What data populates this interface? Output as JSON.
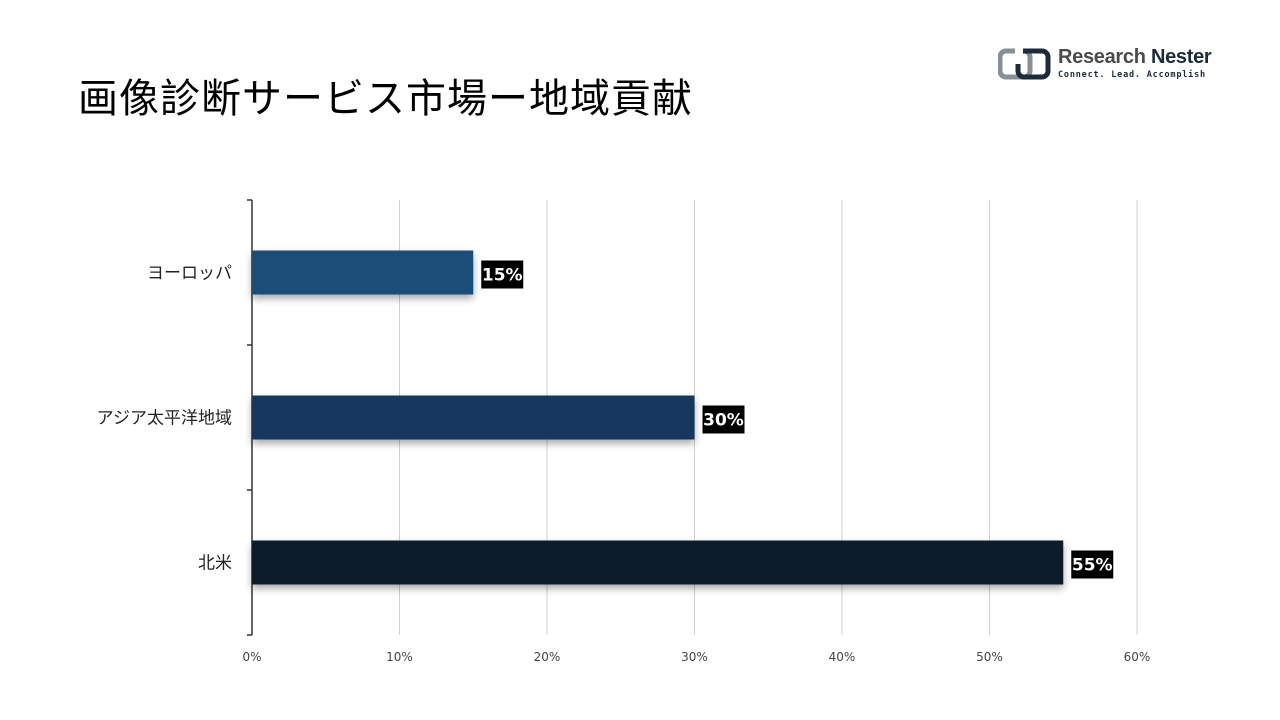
{
  "header": {
    "title": "画像診断サービス市場ー地域貢献"
  },
  "logo": {
    "name_part1": "Research",
    "name_part2": "Nester",
    "tagline": "Connect. Lead. Accomplish",
    "colors": {
      "mark": "#8a8f96",
      "dark": "#1c2a3a"
    }
  },
  "chart_data": {
    "type": "bar",
    "orientation": "horizontal",
    "categories": [
      "ヨーロッパ",
      "アジア太平洋地域",
      "北米"
    ],
    "values": [
      15,
      30,
      55
    ],
    "data_labels": [
      "15%",
      "30%",
      "55%"
    ],
    "bar_colors": [
      "#1f4e79",
      "#17375e",
      "#0e1c2c"
    ],
    "xlim": [
      0,
      60
    ],
    "xticks": [
      0,
      10,
      20,
      30,
      40,
      50,
      60
    ],
    "xtick_labels": [
      "0%",
      "10%",
      "20%",
      "30%",
      "40%",
      "50%",
      "60%"
    ],
    "grid": true,
    "legend": "none",
    "title": "",
    "xlabel": "",
    "ylabel": ""
  }
}
